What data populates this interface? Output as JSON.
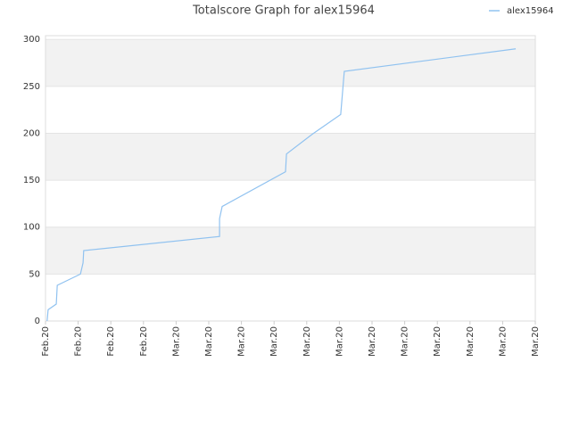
{
  "chart_data": {
    "type": "line",
    "title": "Totalscore Graph for alex15964",
    "x": [
      0.05,
      0.08,
      0.33,
      0.36,
      1.07,
      1.15,
      1.17,
      5.33,
      5.33,
      5.41,
      7.35,
      7.38,
      8.17,
      9.04,
      9.15,
      14.4
    ],
    "series": [
      {
        "name": "alex15964",
        "color": "#90c2f0",
        "values": [
          0,
          12,
          18,
          38,
          50,
          62,
          75,
          90,
          109,
          122,
          159,
          178,
          199,
          220,
          266,
          290
        ]
      }
    ],
    "xlim": [
      0,
      15
    ],
    "xticks": [
      {
        "value": 0,
        "label": "Feb.20"
      },
      {
        "value": 1,
        "label": "Feb.20"
      },
      {
        "value": 2,
        "label": "Feb.20"
      },
      {
        "value": 3,
        "label": "Feb.20"
      },
      {
        "value": 4,
        "label": "Mar.20"
      },
      {
        "value": 5,
        "label": "Mar.20"
      },
      {
        "value": 6,
        "label": "Mar.20"
      },
      {
        "value": 7,
        "label": "Mar.20"
      },
      {
        "value": 8,
        "label": "Mar.20"
      },
      {
        "value": 9,
        "label": "Mar.20"
      },
      {
        "value": 10,
        "label": "Mar.20"
      },
      {
        "value": 11,
        "label": "Mar.20"
      },
      {
        "value": 12,
        "label": "Mar.20"
      },
      {
        "value": 13,
        "label": "Mar.20"
      },
      {
        "value": 14,
        "label": "Mar.20"
      },
      {
        "value": 15,
        "label": "Mar.20"
      }
    ],
    "ylim": [
      0,
      304
    ],
    "yticks": [
      0,
      50,
      100,
      150,
      200,
      250,
      300
    ],
    "grid": true,
    "legend": "top-right"
  }
}
